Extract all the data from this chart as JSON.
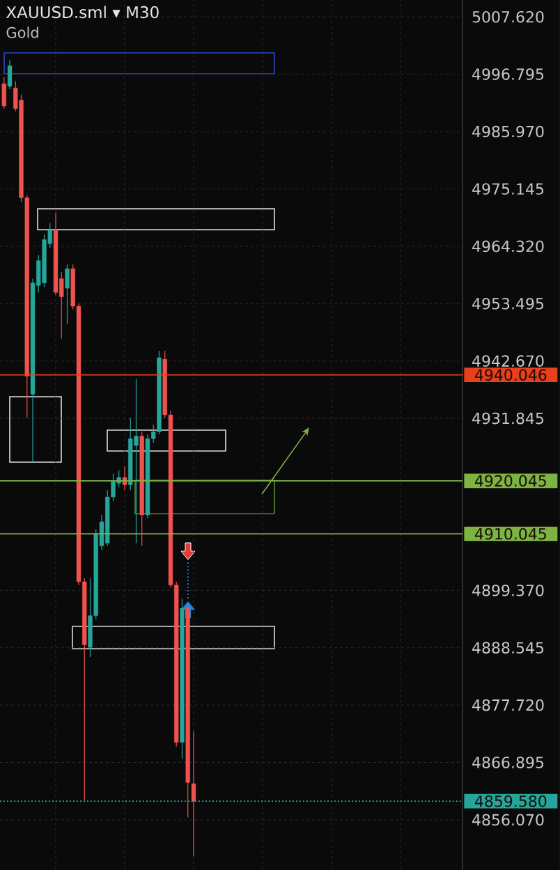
{
  "chart_data": {
    "type": "candlestick",
    "title": "XAUUSD.sml ▾ M30",
    "subtitle": "Gold",
    "categories": [
      null,
      null,
      null,
      null,
      null,
      null,
      null,
      null,
      null,
      null,
      null,
      null,
      null,
      null,
      null,
      null,
      null,
      null,
      null,
      null,
      null,
      null,
      null,
      null,
      null,
      null,
      null,
      null,
      null,
      null,
      null,
      null,
      null,
      null,
      null,
      null,
      null,
      null,
      null,
      null,
      null,
      null,
      null,
      null,
      null,
      null,
      null,
      null,
      null,
      null,
      null,
      null,
      null,
      null,
      null,
      null,
      null,
      null,
      null,
      null,
      null,
      null,
      null,
      null,
      null,
      null,
      null,
      null,
      null,
      null,
      null,
      null,
      null,
      null,
      null,
      null,
      null,
      null,
      null,
      null
    ],
    "ohlc": [
      [
        4995.0,
        4996.3,
        4990.3,
        4990.8
      ],
      [
        4994.5,
        4999.5,
        4994.0,
        4998.4
      ],
      [
        4994.2,
        4995.5,
        4989.8,
        4990.3
      ],
      [
        4991.9,
        4992.9,
        4972.7,
        4973.5
      ],
      [
        4973.5,
        4974.0,
        4931.9,
        4939.8
      ],
      [
        4936.4,
        4958.2,
        4923.5,
        4957.4
      ],
      [
        4956.9,
        4962.7,
        4955.6,
        4961.6
      ],
      [
        4957.4,
        4966.6,
        4956.6,
        4965.6
      ],
      [
        4964.8,
        4968.7,
        4964.0,
        4967.4
      ],
      [
        4967.4,
        4970.6,
        4955.1,
        4955.6
      ],
      [
        4958.2,
        4959.5,
        4946.9,
        4954.8
      ],
      [
        4956.4,
        4960.9,
        4949.6,
        4960.1
      ],
      [
        4960.1,
        4960.9,
        4952.4,
        4953.0
      ],
      [
        4953.0,
        4953.5,
        4900.4,
        4901.0
      ],
      [
        4901.0,
        4901.7,
        4859.7,
        4889.1
      ],
      [
        4888.6,
        4901.7,
        4886.8,
        4894.6
      ],
      [
        4894.6,
        4910.9,
        4893.9,
        4910.1
      ],
      [
        4907.8,
        4913.6,
        4907.0,
        4912.3
      ],
      [
        4908.3,
        4918.3,
        4907.8,
        4917.0
      ],
      [
        4917.0,
        4921.4,
        4916.2,
        4920.1
      ],
      [
        4919.6,
        4922.0,
        4918.8,
        4920.7
      ],
      [
        4920.7,
        4922.8,
        4918.3,
        4919.3
      ],
      [
        4919.3,
        4931.9,
        4918.3,
        4928.0
      ],
      [
        4926.7,
        4939.3,
        4908.3,
        4928.5
      ],
      [
        4928.5,
        4929.3,
        4907.8,
        4913.6
      ],
      [
        4913.6,
        4928.8,
        4913.0,
        4928.0
      ],
      [
        4928.0,
        4930.6,
        4927.2,
        4929.3
      ],
      [
        4929.3,
        4944.6,
        4928.8,
        4943.3
      ],
      [
        4943.0,
        4944.6,
        4931.9,
        4932.5
      ],
      [
        4932.5,
        4933.3,
        4899.9,
        4900.4
      ],
      [
        4900.4,
        4901.0,
        4869.9,
        4870.7
      ],
      [
        4870.7,
        4897.8,
        4867.6,
        4896.0
      ],
      [
        4896.0,
        4896.5,
        4856.5,
        4863.1
      ],
      [
        4862.9,
        4872.8,
        4849.2,
        4859.58
      ],
      null,
      null,
      null,
      null,
      null,
      null,
      null,
      null,
      null,
      null,
      null,
      null,
      null,
      null,
      null,
      null,
      null,
      null,
      null,
      null,
      null,
      null,
      null,
      null,
      null,
      null,
      null,
      null,
      null,
      null,
      null,
      null,
      null,
      null,
      null,
      null,
      null,
      null,
      null,
      null,
      null,
      null,
      null,
      null,
      null,
      null
    ],
    "colors": [
      "#ef5350",
      "#26a69a",
      "#ef5350",
      "#ef5350",
      "#ef5350",
      "#26a69a",
      "#26a69a",
      "#26a69a",
      "#26a69a",
      "#ef5350",
      "#ef5350",
      "#26a69a",
      "#ef5350",
      "#ef5350",
      "#ef5350",
      "#26a69a",
      "#26a69a",
      "#26a69a",
      "#26a69a",
      "#26a69a",
      "#26a69a",
      "#ef5350",
      "#26a69a",
      "#26a69a",
      "#ef5350",
      "#26a69a",
      "#26a69a",
      "#26a69a",
      "#ef5350",
      "#ef5350",
      "#ef5350",
      "#26a69a",
      "#ef5350",
      "#ef5350",
      null,
      null,
      null,
      null,
      null,
      null,
      null,
      null,
      null,
      null,
      null,
      null,
      null,
      null,
      null,
      null,
      null,
      null,
      null,
      null,
      null,
      null,
      null,
      null,
      null,
      null,
      null,
      null,
      null,
      null,
      null,
      null,
      null,
      null,
      null,
      null,
      null,
      null,
      null,
      null,
      null,
      null,
      null,
      null,
      null,
      null
    ],
    "ylim": [
      4846.6,
      5010.8
    ],
    "yticks": [
      {
        "value": 4856.07,
        "label": "4856.070"
      },
      4866.895,
      {
        "value": 4877.72,
        "label": "4877.720"
      },
      4888.545,
      {
        "value": 4899.37,
        "label": "4899.370"
      },
      4931.845,
      {
        "value": 4942.67,
        "label": "4942.670"
      },
      4953.495,
      {
        "value": 4964.32,
        "label": "4964.320"
      },
      4975.145,
      {
        "value": 4985.97,
        "label": "4985.970"
      },
      4996.795,
      {
        "value": 5007.62,
        "label": "5007.620"
      }
    ],
    "ref_lines": [
      {
        "axis": "y",
        "value": 4940.046,
        "label": "4940.046",
        "color": "#e8401c",
        "line_style": "solid"
      },
      {
        "axis": "y",
        "value": 4920.045,
        "label": "4920.045",
        "color": "#7cb342",
        "line_style": "solid"
      },
      {
        "axis": "y",
        "value": 4910.045,
        "label": "4910.045",
        "color": "#7cb342",
        "line_style": "solid"
      },
      {
        "axis": "y",
        "value": 4859.58,
        "label": "4859.580",
        "color": "#26a69a",
        "line_style": "dotted"
      }
    ],
    "grid": true
  }
}
